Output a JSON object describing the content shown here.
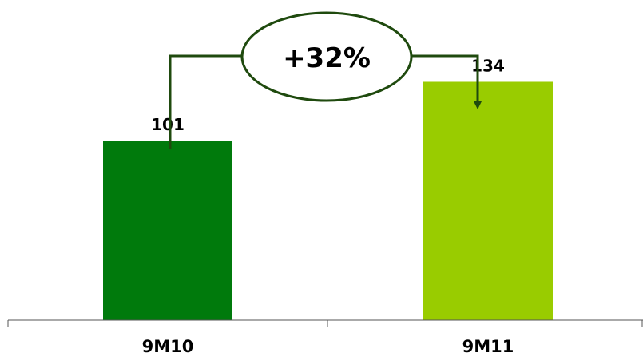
{
  "chart_data": {
    "type": "bar",
    "categories": [
      "9M10",
      "9M11"
    ],
    "values": [
      101,
      134
    ],
    "bar_colors": [
      "#007a0c",
      "#99cc00"
    ],
    "ylim": [
      0,
      180
    ],
    "grid": false,
    "annotation": {
      "text": "+32%",
      "from": "9M10",
      "to": "9M11",
      "line_color": "#1f4a0e"
    },
    "title": "",
    "xlabel": "",
    "ylabel": ""
  }
}
